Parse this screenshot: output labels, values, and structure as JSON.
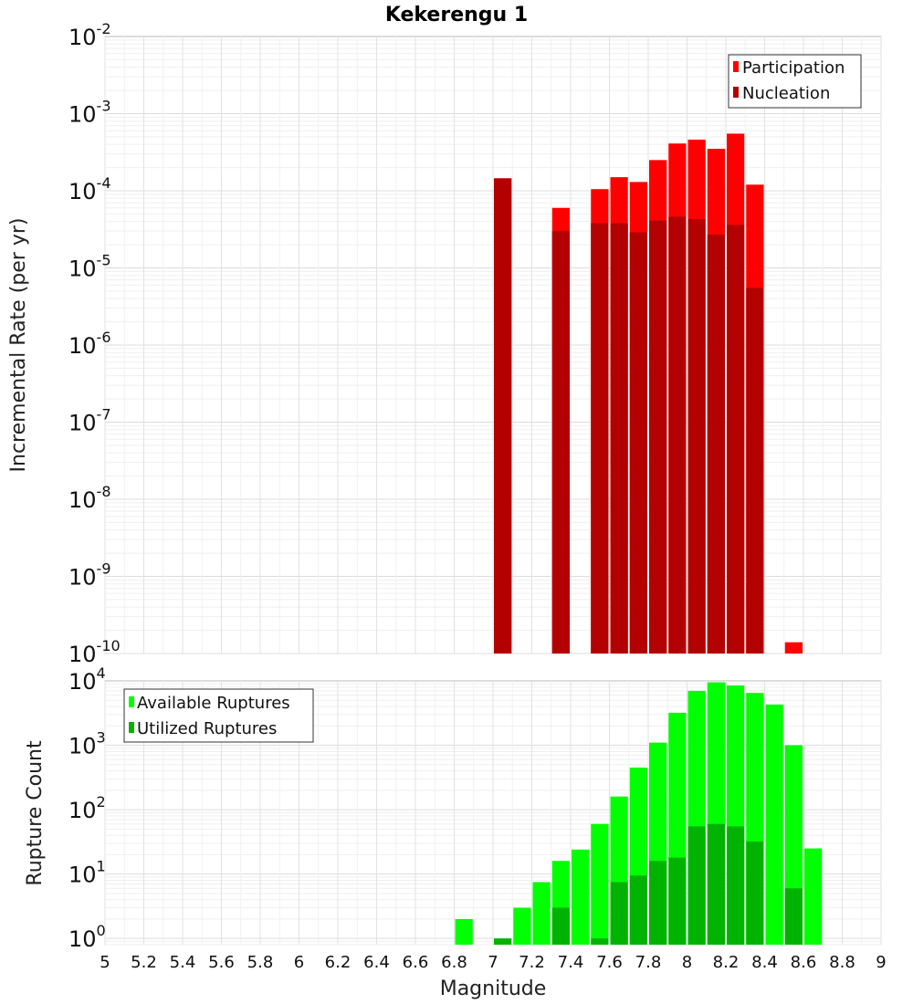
{
  "chart_data": [
    {
      "type": "bar",
      "title": "Kekerengu 1",
      "xlabel": "",
      "ylabel": "Incremental Rate (per yr)",
      "yscale": "log",
      "ylim": [
        1e-10,
        0.01
      ],
      "xlim": [
        5,
        9
      ],
      "y_ticks": [
        {
          "base": "10",
          "exp": "-2"
        },
        {
          "base": "10",
          "exp": "-3"
        },
        {
          "base": "10",
          "exp": "-4"
        },
        {
          "base": "10",
          "exp": "-5"
        },
        {
          "base": "10",
          "exp": "-6"
        },
        {
          "base": "10",
          "exp": "-7"
        },
        {
          "base": "10",
          "exp": "-8"
        },
        {
          "base": "10",
          "exp": "-9"
        },
        {
          "base": "10",
          "exp": "-10"
        }
      ],
      "legend": {
        "position": "top-right",
        "entries": [
          "Participation",
          "Nucleation"
        ]
      },
      "grid": true,
      "series": [
        {
          "name": "Participation",
          "color": "#ff0000",
          "x": [
            7.05,
            7.35,
            7.55,
            7.65,
            7.75,
            7.85,
            7.95,
            8.05,
            8.15,
            8.25,
            8.35,
            8.55
          ],
          "values": [
            0.000145,
            6e-05,
            0.000105,
            0.00015,
            0.00013,
            0.00025,
            0.00041,
            0.00046,
            0.00035,
            0.00055,
            0.00012,
            1.4e-10
          ]
        },
        {
          "name": "Nucleation",
          "color": "#b30000",
          "x": [
            7.05,
            7.35,
            7.55,
            7.65,
            7.75,
            7.85,
            7.95,
            8.05,
            8.15,
            8.25,
            8.35
          ],
          "values": [
            0.000145,
            3e-05,
            3.8e-05,
            3.8e-05,
            2.9e-05,
            4.1e-05,
            4.6e-05,
            4.3e-05,
            2.7e-05,
            3.6e-05,
            5.5e-06
          ]
        }
      ]
    },
    {
      "type": "bar",
      "title": "",
      "xlabel": "Magnitude",
      "ylabel": "Rupture Count",
      "yscale": "log",
      "ylim": [
        0.8,
        10000
      ],
      "xlim": [
        5,
        9
      ],
      "y_ticks": [
        {
          "value": 10000,
          "base": "10",
          "exp": "4"
        },
        {
          "value": 1000,
          "base": "10",
          "exp": "3"
        },
        {
          "value": 100,
          "base": "10",
          "exp": "2"
        },
        {
          "value": 10,
          "base": "10",
          "exp": "1"
        },
        {
          "value": 1,
          "base": "10",
          "exp": "0"
        }
      ],
      "x_ticks": [
        "5",
        "5.2",
        "5.4",
        "5.6",
        "5.8",
        "6",
        "6.2",
        "6.4",
        "6.6",
        "6.8",
        "7",
        "7.2",
        "7.4",
        "7.6",
        "7.8",
        "8",
        "8.2",
        "8.4",
        "8.6",
        "8.8",
        "9"
      ],
      "legend": {
        "position": "top-left",
        "entries": [
          "Available Ruptures",
          "Utilized Ruptures"
        ]
      },
      "grid": true,
      "series": [
        {
          "name": "Available Ruptures",
          "color": "#00ff00",
          "x": [
            6.85,
            7.15,
            7.25,
            7.35,
            7.45,
            7.55,
            7.65,
            7.75,
            7.85,
            7.95,
            8.05,
            8.15,
            8.25,
            8.35,
            8.45,
            8.55,
            8.65
          ],
          "values": [
            2,
            3,
            7.5,
            16,
            24,
            60,
            160,
            450,
            1100,
            3200,
            7000,
            9500,
            8500,
            6500,
            4300,
            1000,
            25
          ]
        },
        {
          "name": "Utilized Ruptures",
          "color": "#00b300",
          "x": [
            7.05,
            7.35,
            7.55,
            7.65,
            7.75,
            7.85,
            7.95,
            8.05,
            8.15,
            8.25,
            8.35,
            8.55
          ],
          "values": [
            1,
            3,
            1,
            7.5,
            9.5,
            16,
            18,
            55,
            60,
            55,
            32,
            6
          ]
        }
      ]
    }
  ]
}
